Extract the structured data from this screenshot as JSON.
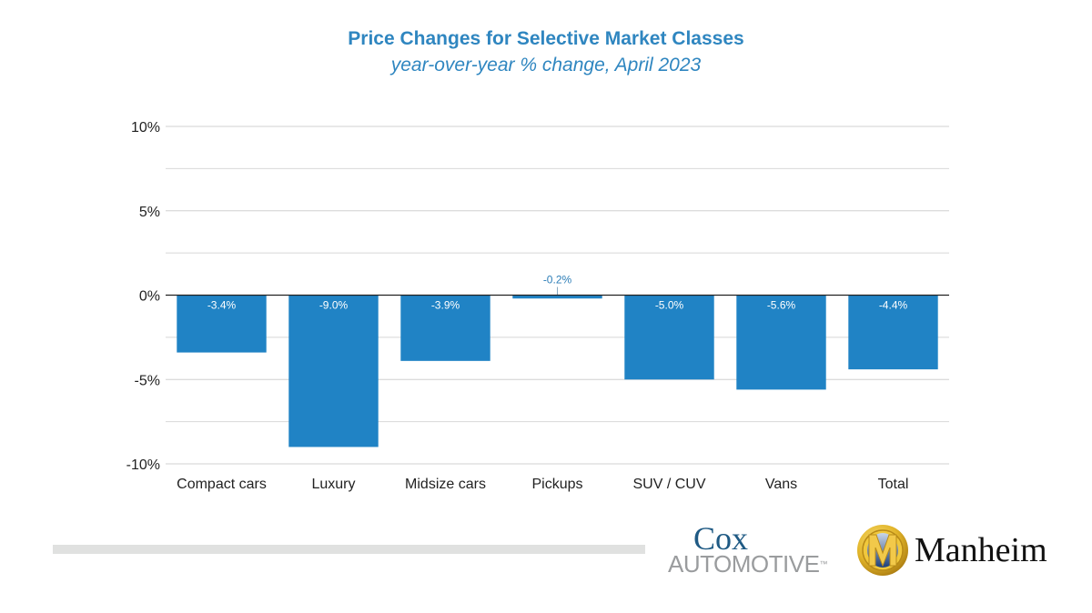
{
  "chart_data": {
    "type": "bar",
    "title": "Price Changes for Selective Market Classes",
    "subtitle": "year-over-year % change, April 2023",
    "xlabel": "",
    "ylabel": "",
    "categories": [
      "Compact cars",
      "Luxury",
      "Midsize cars",
      "Pickups",
      "SUV / CUV",
      "Vans",
      "Total"
    ],
    "values": [
      -3.4,
      -9.0,
      -3.9,
      -0.2,
      -5.0,
      -5.6,
      -4.4
    ],
    "data_labels": [
      "-3.4%",
      "-9.0%",
      "-3.9%",
      "-0.2%",
      "-5.0%",
      "-5.6%",
      "-4.4%"
    ],
    "ylim": [
      -10,
      10
    ],
    "yticks": [
      10,
      5,
      0,
      -5,
      -10
    ],
    "ytick_labels": [
      "10%",
      "5%",
      "0%",
      "-5%",
      "-10%"
    ],
    "minor_gridlines": [
      7.5,
      2.5,
      -2.5,
      -7.5
    ],
    "grid": true,
    "legend": "none",
    "bar_color": "#2083c5",
    "label_color_inside": "#ffffff",
    "label_color_outside": "#2f7fb8"
  },
  "footer": {
    "cox_top": "Cox",
    "cox_bottom": "AUTOMOTIVE",
    "cox_tm": "™",
    "manheim": "Manheim",
    "manheim_icon": "manheim-m-emblem-icon"
  }
}
